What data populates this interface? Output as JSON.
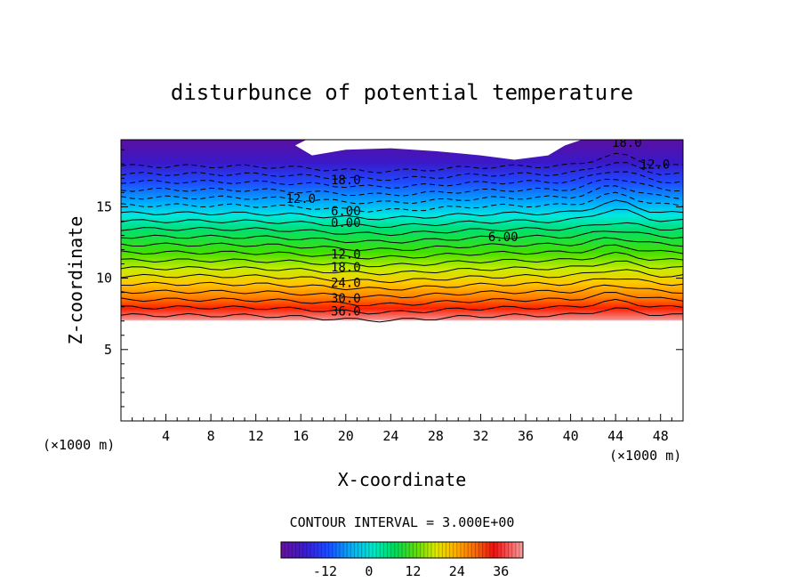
{
  "chart_data": {
    "type": "heatmap",
    "subtype": "filled-contour",
    "title": "disturbunce of potential temperature",
    "xlabel": "X-coordinate",
    "ylabel": "Z-coordinate",
    "x_unit": "(×1000 m)",
    "z_unit": "(×1000 m)",
    "xlim": [
      0,
      50
    ],
    "ylim": [
      0,
      19.7
    ],
    "x_ticks": [
      "4",
      "8",
      "12",
      "16",
      "20",
      "24",
      "28",
      "32",
      "36",
      "40",
      "44",
      "48"
    ],
    "y_ticks": [
      "5",
      "10",
      "15"
    ],
    "contour_interval_text": "CONTOUR INTERVAL = 3.000E+00",
    "contour_interval": 3.0,
    "color_range": [
      -24,
      42
    ],
    "colorbar_ticks": [
      "-12",
      "0",
      "12",
      "24",
      "36"
    ],
    "colorbar_tick_values": [
      -12,
      0,
      12,
      24,
      36
    ],
    "contour_labels": [
      {
        "text": "18.0",
        "x": 20.0,
        "z": 16.9,
        "dashed": true
      },
      {
        "text": "12.0",
        "x": 16.0,
        "z": 15.6,
        "dashed": true
      },
      {
        "text": "6.00",
        "x": 20.0,
        "z": 14.7,
        "dashed": true
      },
      {
        "text": "0.00",
        "x": 20.0,
        "z": 13.9,
        "dashed": false
      },
      {
        "text": "6.00",
        "x": 34.0,
        "z": 12.9,
        "dashed": false
      },
      {
        "text": "12.0",
        "x": 20.0,
        "z": 11.7,
        "dashed": false
      },
      {
        "text": "18.0",
        "x": 20.0,
        "z": 10.8,
        "dashed": false
      },
      {
        "text": "24.0",
        "x": 20.0,
        "z": 9.7,
        "dashed": false
      },
      {
        "text": "30.0",
        "x": 20.0,
        "z": 8.6,
        "dashed": false
      },
      {
        "text": "36.0",
        "x": 20.0,
        "z": 7.7,
        "dashed": false
      },
      {
        "text": "18.0",
        "x": 45.0,
        "z": 19.5,
        "dashed": true
      },
      {
        "text": "12.0",
        "x": 47.5,
        "z": 18.0,
        "dashed": true
      }
    ]
  }
}
